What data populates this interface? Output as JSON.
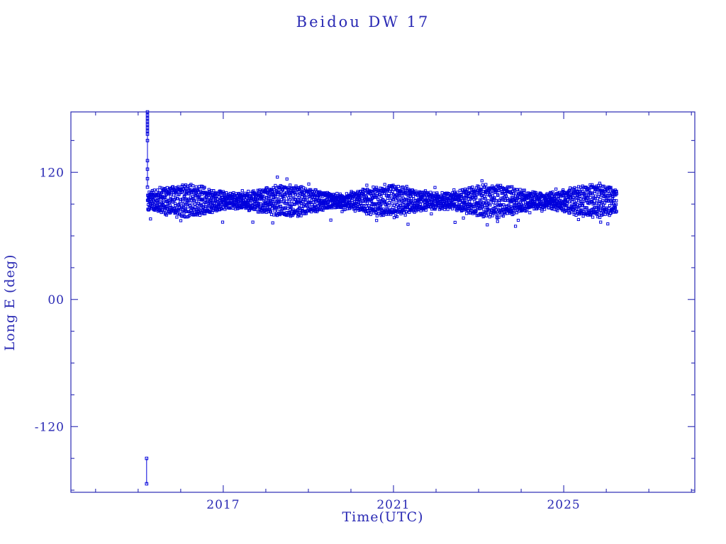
{
  "page": {
    "background": "#ffffff"
  },
  "chart_data": {
    "type": "scatter",
    "title": "Beidou DW 17",
    "xlabel": "Time(UTC)",
    "ylabel": "Long E (deg)",
    "axis_color": "#2a2ab4",
    "marker_color": "#0000dc",
    "xlim": [
      2013.42,
      2028.08
    ],
    "ylim": [
      -182,
      177
    ],
    "xticks": [
      2017,
      2021,
      2025
    ],
    "xtick_labels": [
      "2017",
      "2021",
      "2025"
    ],
    "xminor_step": 1,
    "yticks": [
      120,
      0,
      -120
    ],
    "ytick_labels": [
      "120",
      "00",
      "-120"
    ],
    "yminor_step": 30,
    "grid": false,
    "legend": "none",
    "series": [
      {
        "name": "longitude-band",
        "kind": "band",
        "x_start": 2015.22,
        "x_end": 2026.25,
        "y_center": 93,
        "y_amplitude": 13,
        "y_jitter": 6,
        "points_per_year": 280,
        "seed": 42
      },
      {
        "name": "deployment-spike",
        "kind": "line",
        "x": 2015.22,
        "points_y": [
          177,
          174,
          171,
          168,
          165,
          162,
          159,
          156,
          150,
          131,
          123,
          114,
          106
        ]
      },
      {
        "name": "low-outliers",
        "kind": "line",
        "x": 2015.2,
        "points_y": [
          -150,
          -174
        ]
      }
    ]
  }
}
